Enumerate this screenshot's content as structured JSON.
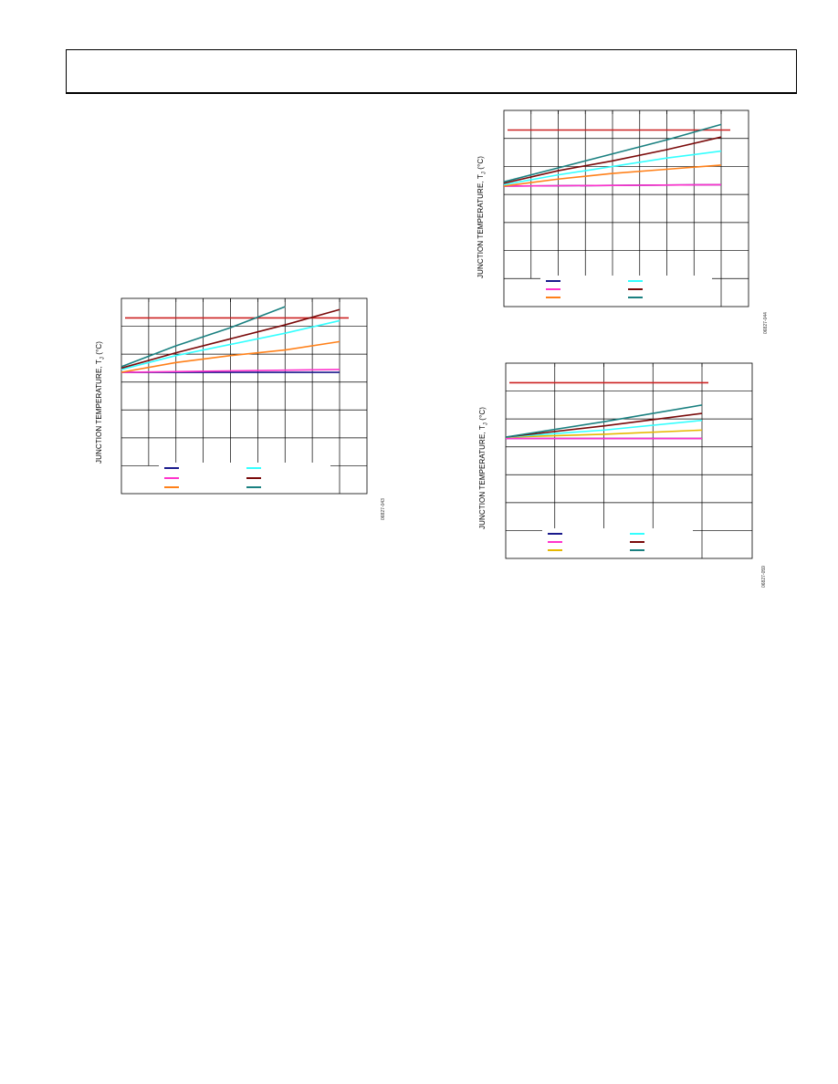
{
  "page": {
    "header_text": ""
  },
  "charts_meta": [
    {
      "ylabel_main": "JUNCTION TEMPERATURE, T",
      "ylabel_sub": "J",
      "ylabel_unit": " (°C)",
      "fig_id": "06827-043"
    },
    {
      "ylabel_main": "JUNCTION TEMPERATURE, T",
      "ylabel_sub": "J",
      "ylabel_unit": " (°C)",
      "fig_id": "06827-044"
    },
    {
      "ylabel_main": "JUNCTION TEMPERATURE, T",
      "ylabel_sub": "J",
      "ylabel_unit": " (°C)",
      "fig_id": "06827-059"
    }
  ],
  "chart_data": [
    {
      "type": "line",
      "xlabel": "",
      "ylabel": "JUNCTION TEMPERATURE, TJ (°C)",
      "xlim": [
        0,
        8
      ],
      "ylim": [
        0,
        7
      ],
      "x_divisions": 8,
      "y_divisions": 7,
      "grid": true,
      "legend": "bottom-left",
      "limit_line": {
        "value": 6.3,
        "color": "#cc2222"
      },
      "series": [
        {
          "color": "#1a1a8c",
          "x": [
            0,
            8
          ],
          "y": [
            4.35,
            4.35
          ]
        },
        {
          "color": "#ff33cc",
          "x": [
            0,
            8
          ],
          "y": [
            4.35,
            4.45
          ]
        },
        {
          "color": "#ff8019",
          "x": [
            0,
            2,
            4,
            6,
            8
          ],
          "y": [
            4.35,
            4.7,
            4.95,
            5.15,
            5.45
          ]
        },
        {
          "color": "#33ffff",
          "x": [
            0,
            2,
            4,
            6,
            8
          ],
          "y": [
            4.45,
            4.95,
            5.35,
            5.75,
            6.2
          ]
        },
        {
          "color": "#7a0a0a",
          "x": [
            0,
            2,
            4,
            6,
            8
          ],
          "y": [
            4.5,
            5.05,
            5.55,
            6.05,
            6.6
          ]
        },
        {
          "color": "#1a8080",
          "x": [
            0,
            2,
            4,
            6
          ],
          "y": [
            4.55,
            5.3,
            5.95,
            6.7
          ]
        }
      ]
    },
    {
      "type": "line",
      "xlabel": "",
      "ylabel": "JUNCTION TEMPERATURE, TJ (°C)",
      "xlim": [
        0,
        8
      ],
      "ylim": [
        0,
        7
      ],
      "x_divisions": 8,
      "y_divisions": 7,
      "grid": true,
      "legend": "bottom-left",
      "limit_line": {
        "value": 6.3,
        "color": "#cc2222"
      },
      "series": [
        {
          "color": "#1a1a8c",
          "x": [
            0,
            8
          ],
          "y": [
            4.3,
            4.35
          ]
        },
        {
          "color": "#ff33cc",
          "x": [
            0,
            8
          ],
          "y": [
            4.3,
            4.35
          ]
        },
        {
          "color": "#ff8019",
          "x": [
            0,
            2,
            4,
            6,
            8
          ],
          "y": [
            4.3,
            4.55,
            4.75,
            4.9,
            5.05
          ]
        },
        {
          "color": "#33ffff",
          "x": [
            0,
            2,
            4,
            6,
            8
          ],
          "y": [
            4.35,
            4.7,
            5.0,
            5.3,
            5.55
          ]
        },
        {
          "color": "#7a0a0a",
          "x": [
            0,
            2,
            4,
            6,
            8
          ],
          "y": [
            4.4,
            4.85,
            5.2,
            5.6,
            6.05
          ]
        },
        {
          "color": "#1a8080",
          "x": [
            0,
            2,
            4,
            6,
            8
          ],
          "y": [
            4.45,
            4.95,
            5.45,
            5.95,
            6.5
          ]
        }
      ]
    },
    {
      "type": "line",
      "xlabel": "",
      "ylabel": "JUNCTION TEMPERATURE, TJ (°C)",
      "xlim": [
        0,
        4
      ],
      "ylim": [
        0,
        7
      ],
      "x_divisions": 4,
      "y_divisions": 7,
      "grid": true,
      "legend": "bottom-left",
      "limit_line": {
        "value": 6.3,
        "color": "#cc2222"
      },
      "series": [
        {
          "color": "#1a1a8c",
          "x": [
            0,
            4
          ],
          "y": [
            4.3,
            4.3
          ]
        },
        {
          "color": "#ff33cc",
          "x": [
            0,
            4
          ],
          "y": [
            4.3,
            4.3
          ]
        },
        {
          "color": "#e6b800",
          "x": [
            0,
            2,
            4
          ],
          "y": [
            4.35,
            4.45,
            4.6
          ]
        },
        {
          "color": "#33ffff",
          "x": [
            0,
            2,
            4
          ],
          "y": [
            4.35,
            4.6,
            4.95
          ]
        },
        {
          "color": "#7a0a0a",
          "x": [
            0,
            2,
            4
          ],
          "y": [
            4.35,
            4.75,
            5.2
          ]
        },
        {
          "color": "#1a8080",
          "x": [
            0,
            2,
            4
          ],
          "y": [
            4.35,
            4.9,
            5.5
          ]
        }
      ]
    }
  ]
}
